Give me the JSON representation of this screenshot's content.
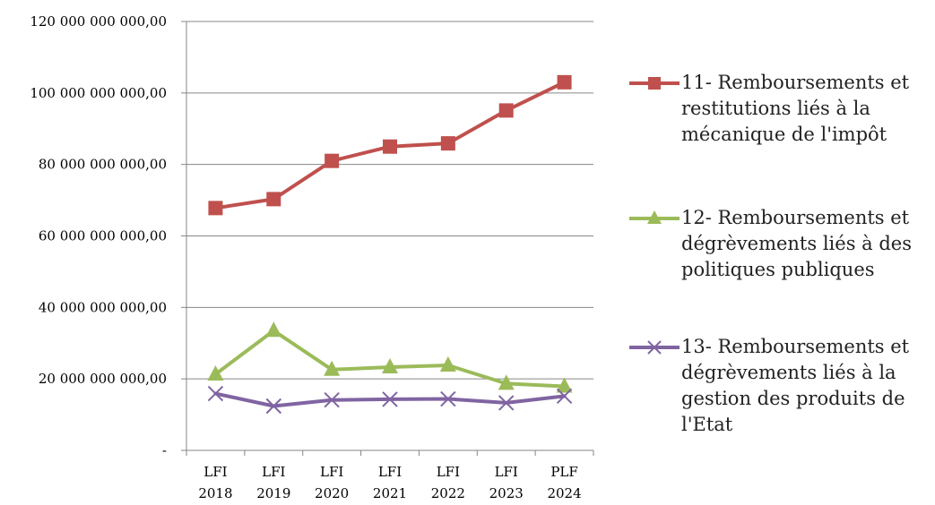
{
  "chart_data": {
    "type": "line",
    "categories": [
      [
        "LFI",
        "2018"
      ],
      [
        "LFI",
        "2019"
      ],
      [
        "LFI",
        "2020"
      ],
      [
        "LFI",
        "2021"
      ],
      [
        "LFI",
        "2022"
      ],
      [
        "LFI",
        "2023"
      ],
      [
        "PLF",
        "2024"
      ]
    ],
    "ylim": [
      0,
      120000000000
    ],
    "yticks": [
      {
        "value": 0,
        "label": "-"
      },
      {
        "value": 20000000000,
        "label": "20 000 000 000,00"
      },
      {
        "value": 40000000000,
        "label": "40 000 000 000,00"
      },
      {
        "value": 60000000000,
        "label": "60 000 000 000,00"
      },
      {
        "value": 80000000000,
        "label": "80 000 000 000,00"
      },
      {
        "value": 100000000000,
        "label": "100 000 000 000,00"
      },
      {
        "value": 120000000000,
        "label": "120 000 000 000,00"
      }
    ],
    "grid": "horizontal",
    "legend_position": "right",
    "series": [
      {
        "name": "11- Remboursements et restitutions liés à la mécanique de l'impôt",
        "color": "#c0504d",
        "marker": "square",
        "values": [
          67800000000,
          70300000000,
          81000000000,
          85000000000,
          85900000000,
          95100000000,
          103000000000
        ]
      },
      {
        "name": "12- Remboursements et dégrèvements liés à des politiques publiques",
        "color": "#9bbb59",
        "marker": "triangle",
        "values": [
          21300000000,
          33500000000,
          22600000000,
          23300000000,
          23800000000,
          18700000000,
          17900000000
        ]
      },
      {
        "name": "13- Remboursements et dégrèvements liés à la gestion des produits de l'Etat",
        "color": "#8064a2",
        "marker": "x",
        "values": [
          15900000000,
          12400000000,
          14100000000,
          14300000000,
          14400000000,
          13300000000,
          15200000000
        ]
      }
    ]
  },
  "legend": {
    "items": [
      {
        "lines": [
          "11- Remboursements et",
          "restitutions liés à la",
          "mécanique de l'impôt"
        ]
      },
      {
        "lines": [
          "12- Remboursements et",
          "dégrèvements liés à des",
          "politiques publiques"
        ]
      },
      {
        "lines": [
          "13- Remboursements et",
          "dégrèvements liés à la",
          "gestion des produits de",
          "l'Etat"
        ]
      }
    ]
  }
}
